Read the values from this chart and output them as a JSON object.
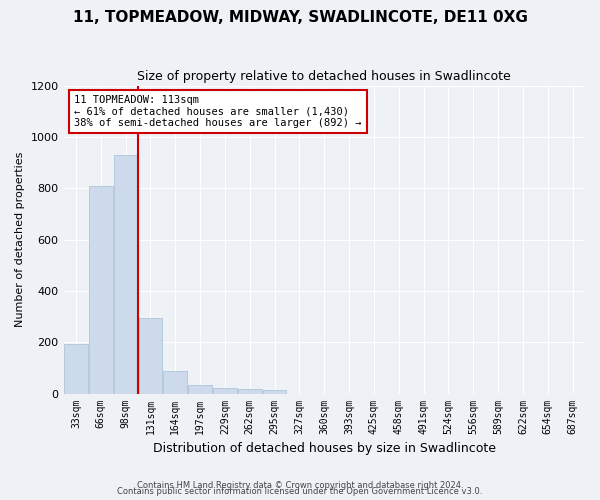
{
  "title": "11, TOPMEADOW, MIDWAY, SWADLINCOTE, DE11 0XG",
  "subtitle": "Size of property relative to detached houses in Swadlincote",
  "xlabel": "Distribution of detached houses by size in Swadlincote",
  "ylabel": "Number of detached properties",
  "bar_color": "#ccdaeb",
  "bar_edge_color": "#a8bfd4",
  "categories": [
    "33sqm",
    "66sqm",
    "98sqm",
    "131sqm",
    "164sqm",
    "197sqm",
    "229sqm",
    "262sqm",
    "295sqm",
    "327sqm",
    "360sqm",
    "393sqm",
    "425sqm",
    "458sqm",
    "491sqm",
    "524sqm",
    "556sqm",
    "589sqm",
    "622sqm",
    "654sqm",
    "687sqm"
  ],
  "values": [
    193,
    810,
    930,
    293,
    88,
    35,
    20,
    18,
    12,
    0,
    0,
    0,
    0,
    0,
    0,
    0,
    0,
    0,
    0,
    0,
    0
  ],
  "ylim": [
    0,
    1200
  ],
  "yticks": [
    0,
    200,
    400,
    600,
    800,
    1000,
    1200
  ],
  "annotation_line1": "11 TOPMEADOW: 113sqm",
  "annotation_line2": "← 61% of detached houses are smaller (1,430)",
  "annotation_line3": "38% of semi-detached houses are larger (892) →",
  "annotation_box_color": "#ffffff",
  "annotation_box_edge": "#cc0000",
  "red_line_color": "#cc0000",
  "footer1": "Contains HM Land Registry data © Crown copyright and database right 2024.",
  "footer2": "Contains public sector information licensed under the Open Government Licence v3.0.",
  "background_color": "#eef2f7",
  "grid_color": "#ffffff",
  "title_fontsize": 11,
  "subtitle_fontsize": 9
}
